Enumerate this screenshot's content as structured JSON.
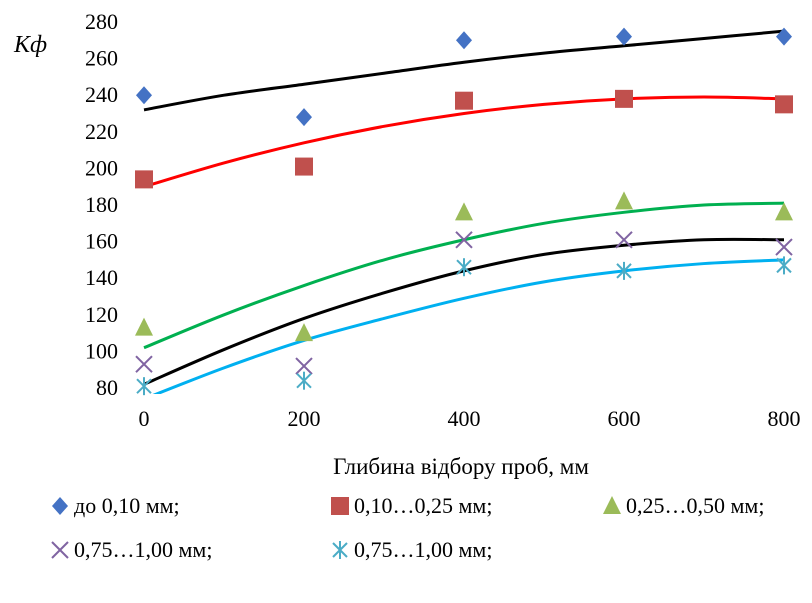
{
  "chart_data": {
    "type": "scatter",
    "title": "",
    "xlabel": "Глибина відбору проб, мм",
    "ylabel": "Кф",
    "xlim": [
      0,
      800
    ],
    "ylim": [
      80,
      280
    ],
    "xticks": [
      0,
      200,
      400,
      600,
      800
    ],
    "yticks": [
      80,
      100,
      120,
      140,
      160,
      180,
      200,
      220,
      240,
      260,
      280
    ],
    "x": [
      0,
      200,
      400,
      600,
      800
    ],
    "grid": false,
    "legend_position": "bottom",
    "series": [
      {
        "name": "до 0,10 мм;",
        "marker": "diamond",
        "color": "#4472C4",
        "values": [
          240,
          228,
          270,
          272,
          272
        ],
        "trend": {
          "color": "#000000",
          "points": [
            [
              0,
              232
            ],
            [
              100,
              240
            ],
            [
              200,
              246
            ],
            [
              300,
              252
            ],
            [
              400,
              258
            ],
            [
              500,
              263
            ],
            [
              600,
              267
            ],
            [
              700,
              271
            ],
            [
              800,
              275
            ]
          ]
        }
      },
      {
        "name": "0,10…0,25  мм;",
        "marker": "square",
        "color": "#C0504D",
        "values": [
          194,
          201,
          237,
          238,
          235
        ],
        "trend": {
          "color": "#FF0000",
          "points": [
            [
              0,
              190
            ],
            [
              100,
              203
            ],
            [
              200,
              214
            ],
            [
              300,
              223
            ],
            [
              400,
              230
            ],
            [
              500,
              235
            ],
            [
              600,
              238
            ],
            [
              700,
              239
            ],
            [
              800,
              238
            ]
          ]
        }
      },
      {
        "name": "0,25…0,50  мм;",
        "marker": "triangle",
        "color": "#9BBB59",
        "values": [
          113,
          110,
          176,
          182,
          176
        ],
        "trend": {
          "color": "#00B050",
          "points": [
            [
              0,
              102
            ],
            [
              100,
              120
            ],
            [
              200,
              136
            ],
            [
              300,
              150
            ],
            [
              400,
              161
            ],
            [
              500,
              170
            ],
            [
              600,
              176
            ],
            [
              700,
              180
            ],
            [
              800,
              181
            ]
          ]
        }
      },
      {
        "name": "0,75…1,00  мм;",
        "marker": "x",
        "color": "#8064A2",
        "values": [
          93,
          92,
          161,
          161,
          157
        ],
        "trend": {
          "color": "#000000",
          "points": [
            [
              0,
              82
            ],
            [
              100,
              101
            ],
            [
              200,
              118
            ],
            [
              300,
              132
            ],
            [
              400,
              144
            ],
            [
              500,
              153
            ],
            [
              600,
              158
            ],
            [
              700,
              161
            ],
            [
              800,
              161
            ]
          ]
        }
      },
      {
        "name": "0,75…1,00  мм;",
        "marker": "asterisk",
        "color": "#4BACC6",
        "values": [
          81,
          84,
          146,
          144,
          147
        ],
        "trend": {
          "color": "#00B0F0",
          "points": [
            [
              0,
              74
            ],
            [
              100,
              91
            ],
            [
              200,
              106
            ],
            [
              300,
              118
            ],
            [
              400,
              129
            ],
            [
              500,
              138
            ],
            [
              600,
              144
            ],
            [
              700,
              148
            ],
            [
              800,
              150
            ]
          ]
        }
      }
    ]
  }
}
